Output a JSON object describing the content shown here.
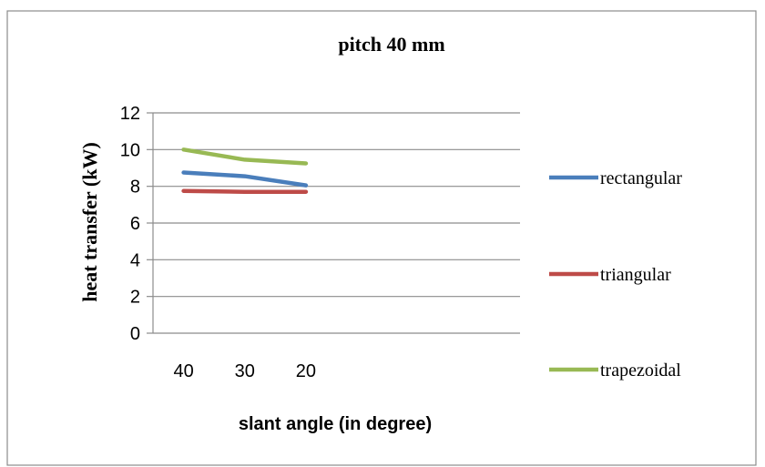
{
  "chart_data": {
    "type": "line",
    "title": "pitch 40 mm",
    "xlabel": "slant angle (in degree)",
    "ylabel": "heat transfer (kW)",
    "categories": [
      "40",
      "30",
      "20"
    ],
    "ylim": [
      0,
      12
    ],
    "yticks": [
      "0",
      "2",
      "4",
      "6",
      "8",
      "10",
      "12"
    ],
    "grid": true,
    "legend_position": "right",
    "series": [
      {
        "name": "rectangular",
        "color": "#4a7ebb",
        "values": [
          8.75,
          8.55,
          8.05
        ]
      },
      {
        "name": "triangular",
        "color": "#be4b48",
        "values": [
          7.75,
          7.7,
          7.7
        ]
      },
      {
        "name": "trapezoidal",
        "color": "#98b954",
        "values": [
          10.0,
          9.45,
          9.25
        ]
      }
    ]
  }
}
